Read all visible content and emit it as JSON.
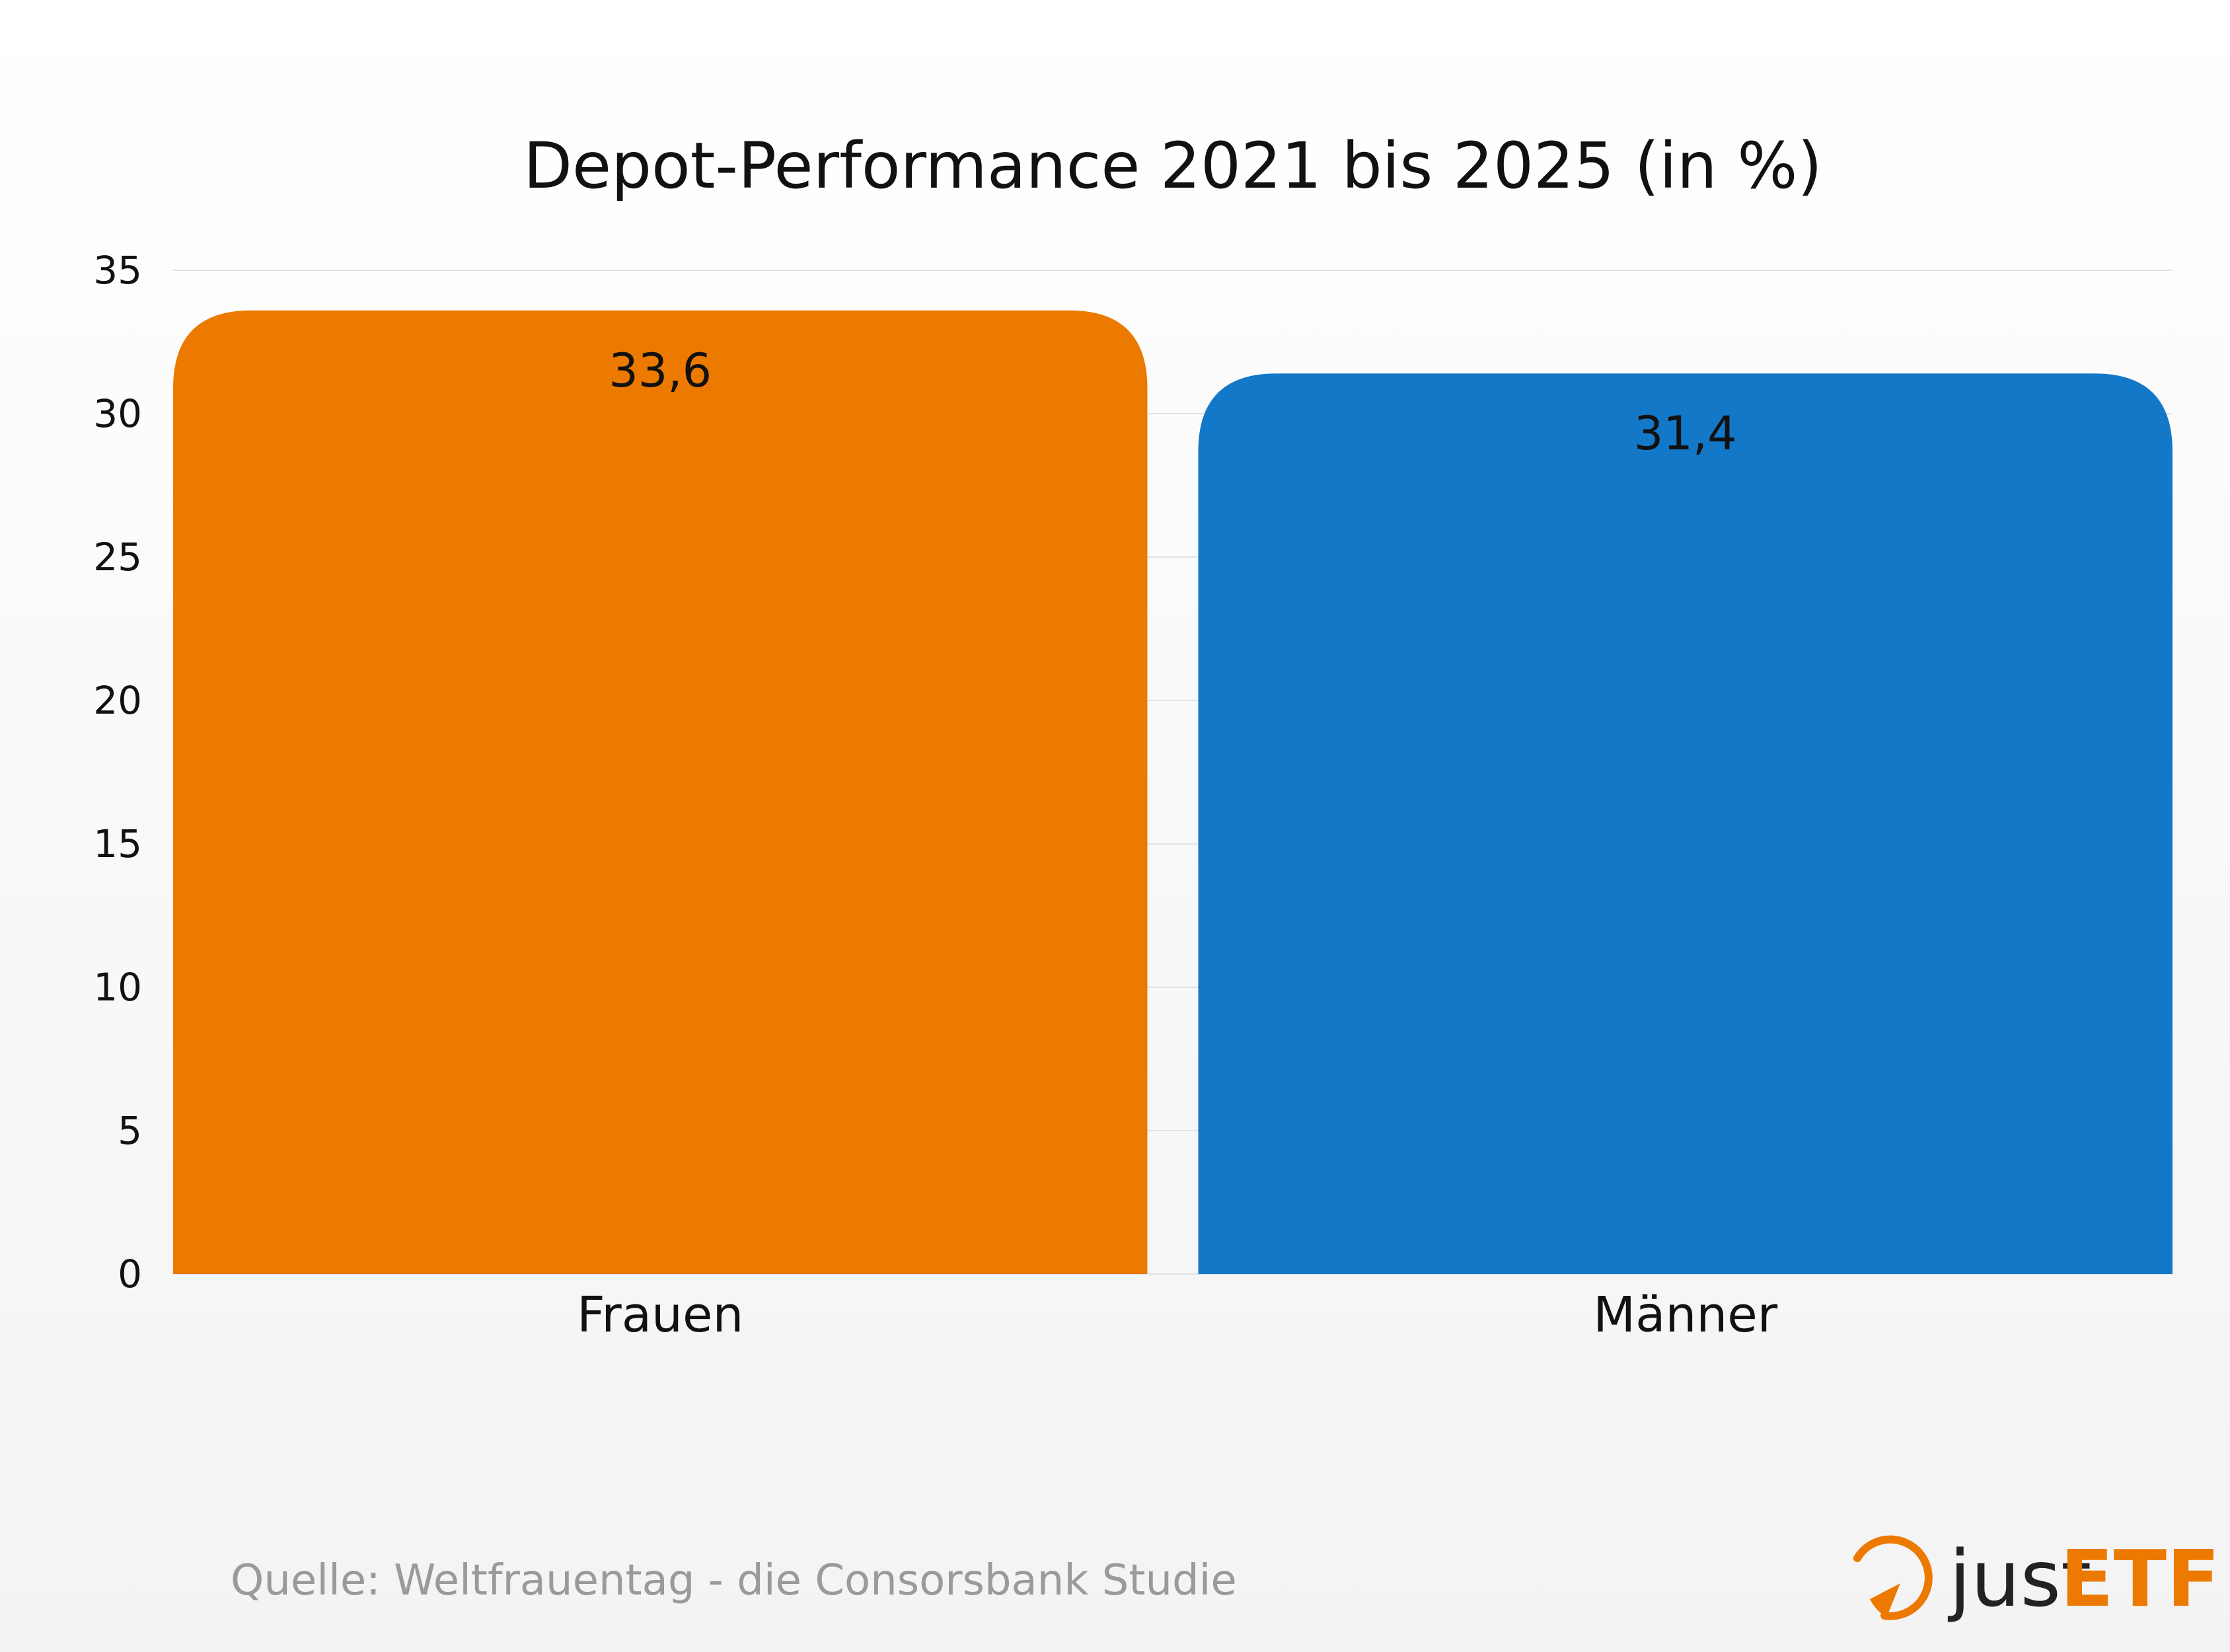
{
  "chart_data": {
    "type": "bar",
    "title": "Depot-Performance 2021 bis 2025 (in %)",
    "categories": [
      "Frauen",
      "Männer"
    ],
    "values": [
      33.6,
      31.4
    ],
    "value_labels": [
      "33,6",
      "31,4"
    ],
    "colors": [
      "#ec7900",
      "#1478c8"
    ],
    "xlabel": "",
    "ylabel": "",
    "ylim": [
      0,
      35
    ],
    "yticks": [
      0,
      5,
      10,
      15,
      20,
      25,
      30,
      35
    ],
    "grid": true
  },
  "source": "Quelle: Weltfrauentag - die Consorsbank Studie",
  "logo": {
    "part1": "just",
    "part2": "ETF",
    "color": "#ec7900"
  }
}
